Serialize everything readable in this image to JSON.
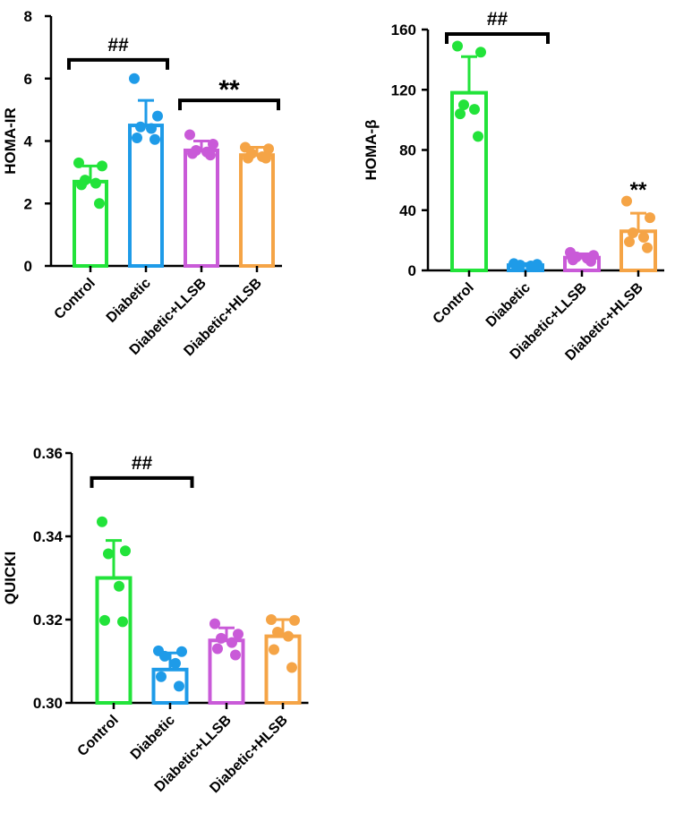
{
  "colors": {
    "Control": "#22e33a",
    "Diabetic": "#1e9be8",
    "Diabetic+LLSB": "#c95ad8",
    "Diabetic+HLSB": "#f5a446",
    "axis": "#000000"
  },
  "chart_data": [
    {
      "type": "bar",
      "id": "homa-ir",
      "ylabel": "HOMA-IR",
      "categories": [
        "Control",
        "Diabetic",
        "Diabetic+LLSB",
        "Diabetic+HLSB"
      ],
      "ylim": [
        0,
        8
      ],
      "yticks": [
        0,
        2,
        4,
        6,
        8
      ],
      "ytick_labels": [
        "0",
        "2",
        "4",
        "6",
        "8"
      ],
      "values": [
        2.7,
        4.5,
        3.7,
        3.55
      ],
      "errors": [
        0.5,
        0.8,
        0.3,
        0.25
      ],
      "points": [
        [
          3.3,
          3.2,
          2.75,
          2.65,
          2.6,
          2.0
        ],
        [
          6.0,
          4.8,
          4.45,
          4.4,
          4.1,
          4.05
        ],
        [
          4.2,
          3.9,
          3.7,
          3.65,
          3.6,
          3.55
        ],
        [
          3.8,
          3.75,
          3.6,
          3.5,
          3.45,
          3.45
        ]
      ],
      "brackets": [
        {
          "from": 0,
          "to": 1,
          "y": 6.6,
          "label": "##"
        },
        {
          "from": 2,
          "to": 3,
          "y": 5.3,
          "label": "**"
        }
      ],
      "annotations": []
    },
    {
      "type": "bar",
      "id": "homa-beta",
      "ylabel": "HOMA-β",
      "categories": [
        "Control",
        "Diabetic",
        "Diabetic+LLSB",
        "Diabetic+HLSB"
      ],
      "ylim": [
        0,
        160
      ],
      "yticks": [
        0,
        40,
        80,
        120,
        160
      ],
      "ytick_labels": [
        "0",
        "40",
        "80",
        "120",
        "160"
      ],
      "values": [
        118,
        3.5,
        8.5,
        26
      ],
      "errors": [
        24,
        1,
        2.5,
        12
      ],
      "points": [
        [
          149,
          145,
          110,
          107,
          104,
          89
        ],
        [
          4.5,
          4,
          3.5,
          3,
          3,
          2.5
        ],
        [
          12,
          10,
          9,
          8,
          7,
          6
        ],
        [
          46,
          35,
          25,
          22,
          19,
          15
        ]
      ],
      "brackets": [
        {
          "from": 0,
          "to": 1,
          "y": 157,
          "label": "##"
        }
      ],
      "annotations": [
        {
          "cat": 3,
          "y": 57,
          "label": "**"
        }
      ]
    },
    {
      "type": "bar",
      "id": "quicki",
      "ylabel": "QUICKI",
      "categories": [
        "Control",
        "Diabetic",
        "Diabetic+LLSB",
        "Diabetic+HLSB"
      ],
      "ylim": [
        0.3,
        0.36
      ],
      "yticks": [
        0.3,
        0.32,
        0.34,
        0.36
      ],
      "ytick_labels": [
        "0.30",
        "0.32",
        "0.34",
        "0.36"
      ],
      "values": [
        0.33,
        0.308,
        0.315,
        0.316
      ],
      "errors": [
        0.009,
        0.004,
        0.003,
        0.004
      ],
      "points": [
        [
          0.3435,
          0.3365,
          0.3358,
          0.328,
          0.3198,
          0.3195
        ],
        [
          0.3125,
          0.3123,
          0.3112,
          0.3095,
          0.3063,
          0.304
        ],
        [
          0.319,
          0.3165,
          0.3155,
          0.3145,
          0.313,
          0.3115
        ],
        [
          0.32,
          0.3198,
          0.317,
          0.316,
          0.3128,
          0.3085
        ]
      ],
      "brackets": [
        {
          "from": 0,
          "to": 1,
          "y": 0.354,
          "label": "##"
        }
      ],
      "annotations": []
    }
  ]
}
